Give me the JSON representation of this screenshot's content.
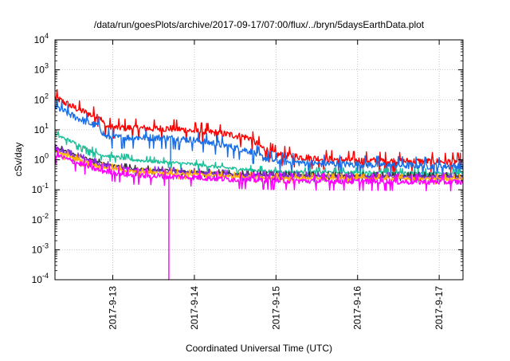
{
  "chart_data": {
    "type": "line",
    "title": "/data/run/goesPlots/archive/2017-09-17/07:00/flux/../bryn/5daysEarthData.plot",
    "xlabel": "Coordinated Universal Time (UTC)",
    "ylabel": "cSv/day",
    "yscale": "log",
    "ylim": [
      0.0001,
      10000
    ],
    "y_ticks": [
      {
        "base": "10",
        "exp": "-4",
        "value": 0.0001
      },
      {
        "base": "10",
        "exp": "-3",
        "value": 0.001
      },
      {
        "base": "10",
        "exp": "-2",
        "value": 0.01
      },
      {
        "base": "10",
        "exp": "-1",
        "value": 0.1
      },
      {
        "base": "10",
        "exp": "0",
        "value": 1
      },
      {
        "base": "10",
        "exp": "1",
        "value": 10
      },
      {
        "base": "10",
        "exp": "2",
        "value": 100
      },
      {
        "base": "10",
        "exp": "3",
        "value": 1000
      },
      {
        "base": "10",
        "exp": "4",
        "value": 10000
      }
    ],
    "xlim": [
      "2017-09-12 07:00",
      "2017-09-17 07:00"
    ],
    "x_ticks": [
      "2017-9-13",
      "2017-9-14",
      "2017-9-15",
      "2017-9-16",
      "2017-9-17"
    ],
    "x_tick_dates": [
      "2017-09-13 00:00",
      "2017-09-14 00:00",
      "2017-09-15 00:00",
      "2017-09-16 00:00",
      "2017-09-17 00:00"
    ],
    "grid": true,
    "series": [
      {
        "color": "#ff0000",
        "noise": 0.12,
        "x": [
          "2017-09-12 07:00",
          "2017-09-12 12:00",
          "2017-09-12 18:00",
          "2017-09-12 20:00",
          "2017-09-12 21:00",
          "2017-09-12 22:00",
          "2017-09-13 00:00",
          "2017-09-13 12:00",
          "2017-09-13 18:00",
          "2017-09-14 00:00",
          "2017-09-14 06:00",
          "2017-09-14 12:00",
          "2017-09-14 16:00",
          "2017-09-14 20:00",
          "2017-09-15 00:00",
          "2017-09-15 12:00",
          "2017-09-16 00:00",
          "2017-09-16 12:00",
          "2017-09-17 07:00"
        ],
        "y": [
          120,
          60,
          30,
          30,
          18,
          13,
          12,
          11,
          11,
          9,
          8,
          6.5,
          5.5,
          2.5,
          1.5,
          1.1,
          0.95,
          0.9,
          0.85
        ]
      },
      {
        "color": "#1a6fe6",
        "noise": 0.12,
        "x": [
          "2017-09-12 07:00",
          "2017-09-12 12:00",
          "2017-09-12 18:00",
          "2017-09-12 20:00",
          "2017-09-12 21:00",
          "2017-09-12 22:00",
          "2017-09-13 00:00",
          "2017-09-13 12:00",
          "2017-09-13 18:00",
          "2017-09-14 00:00",
          "2017-09-14 06:00",
          "2017-09-14 12:00",
          "2017-09-14 16:00",
          "2017-09-14 20:00",
          "2017-09-15 00:00",
          "2017-09-15 12:00",
          "2017-09-16 00:00",
          "2017-09-16 12:00",
          "2017-09-17 07:00"
        ],
        "y": [
          60,
          30,
          15,
          14,
          8,
          6,
          5.5,
          5.5,
          5.2,
          4.5,
          3.5,
          2.5,
          2,
          1.2,
          0.9,
          0.75,
          0.7,
          0.65,
          0.6
        ],
        "dips": [
          {
            "x": "2017-09-13 17:00",
            "y": 0.7
          }
        ]
      },
      {
        "color": "#1fbf9a",
        "noise": 0.06,
        "x": [
          "2017-09-12 07:00",
          "2017-09-12 12:00",
          "2017-09-12 20:00",
          "2017-09-13 06:00",
          "2017-09-14 00:00",
          "2017-09-14 12:00",
          "2017-09-15 00:00",
          "2017-09-16 00:00",
          "2017-09-17 07:00"
        ],
        "y": [
          7,
          4,
          1.5,
          1,
          0.7,
          0.5,
          0.4,
          0.38,
          0.35
        ]
      },
      {
        "color": "#333333",
        "noise": 0.05,
        "x": [
          "2017-09-12 07:00",
          "2017-09-12 12:00",
          "2017-09-12 20:00",
          "2017-09-13 06:00",
          "2017-09-14 00:00",
          "2017-09-14 12:00",
          "2017-09-15 00:00",
          "2017-09-16 00:00",
          "2017-09-17 07:00"
        ],
        "y": [
          2.6,
          1.6,
          0.8,
          0.5,
          0.4,
          0.33,
          0.3,
          0.29,
          0.28
        ]
      },
      {
        "color": "#8a2be2",
        "noise": 0.06,
        "x": [
          "2017-09-12 07:00",
          "2017-09-12 12:00",
          "2017-09-12 20:00",
          "2017-09-13 06:00",
          "2017-09-14 00:00",
          "2017-09-14 12:00",
          "2017-09-15 00:00",
          "2017-09-16 00:00",
          "2017-09-17 07:00"
        ],
        "y": [
          2.3,
          1.4,
          0.7,
          0.45,
          0.37,
          0.31,
          0.28,
          0.27,
          0.26
        ]
      },
      {
        "color": "#ffb000",
        "noise": 0.06,
        "x": [
          "2017-09-12 07:00",
          "2017-09-12 12:00",
          "2017-09-12 20:00",
          "2017-09-13 06:00",
          "2017-09-14 00:00",
          "2017-09-14 12:00",
          "2017-09-15 00:00",
          "2017-09-16 00:00",
          "2017-09-17 07:00"
        ],
        "y": [
          1.9,
          1.2,
          0.6,
          0.4,
          0.33,
          0.28,
          0.25,
          0.24,
          0.23
        ]
      },
      {
        "color": "#ff00ff",
        "noise": 0.1,
        "x": [
          "2017-09-12 07:00",
          "2017-09-12 12:00",
          "2017-09-12 20:00",
          "2017-09-13 06:00",
          "2017-09-14 00:00",
          "2017-09-14 12:00",
          "2017-09-15 00:00",
          "2017-09-16 00:00",
          "2017-09-17 07:00"
        ],
        "y": [
          1.5,
          0.9,
          0.45,
          0.3,
          0.26,
          0.22,
          0.2,
          0.19,
          0.18
        ],
        "dips": [
          {
            "x": "2017-09-13 16:30",
            "y": 0.0001
          }
        ]
      }
    ]
  }
}
